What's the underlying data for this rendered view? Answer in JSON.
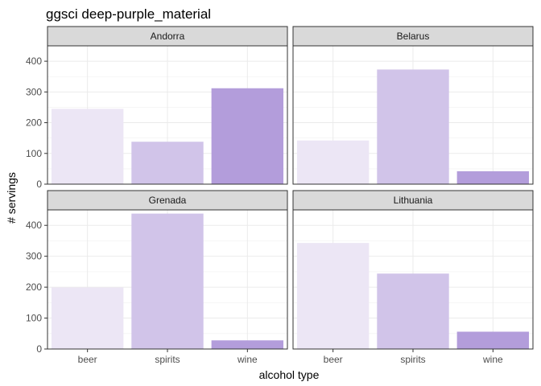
{
  "chart_data": {
    "type": "bar",
    "title": "ggsci deep-purple_material",
    "xlabel": "alcohol type",
    "ylabel": "# servings",
    "ylim": [
      0,
      450
    ],
    "yticks": [
      0,
      100,
      200,
      300,
      400
    ],
    "categories": [
      "beer",
      "spirits",
      "wine"
    ],
    "colors": [
      "#ECE6F5",
      "#D1C4E9",
      "#B39DDB"
    ],
    "strip_color": "#D9D9D9",
    "grid": true,
    "facet_grid": "2x2",
    "panels": [
      {
        "name": "Andorra",
        "values": [
          245,
          138,
          312
        ]
      },
      {
        "name": "Belarus",
        "values": [
          142,
          373,
          42
        ]
      },
      {
        "name": "Grenada",
        "values": [
          199,
          438,
          28
        ]
      },
      {
        "name": "Lithuania",
        "values": [
          343,
          244,
          56
        ]
      }
    ]
  }
}
